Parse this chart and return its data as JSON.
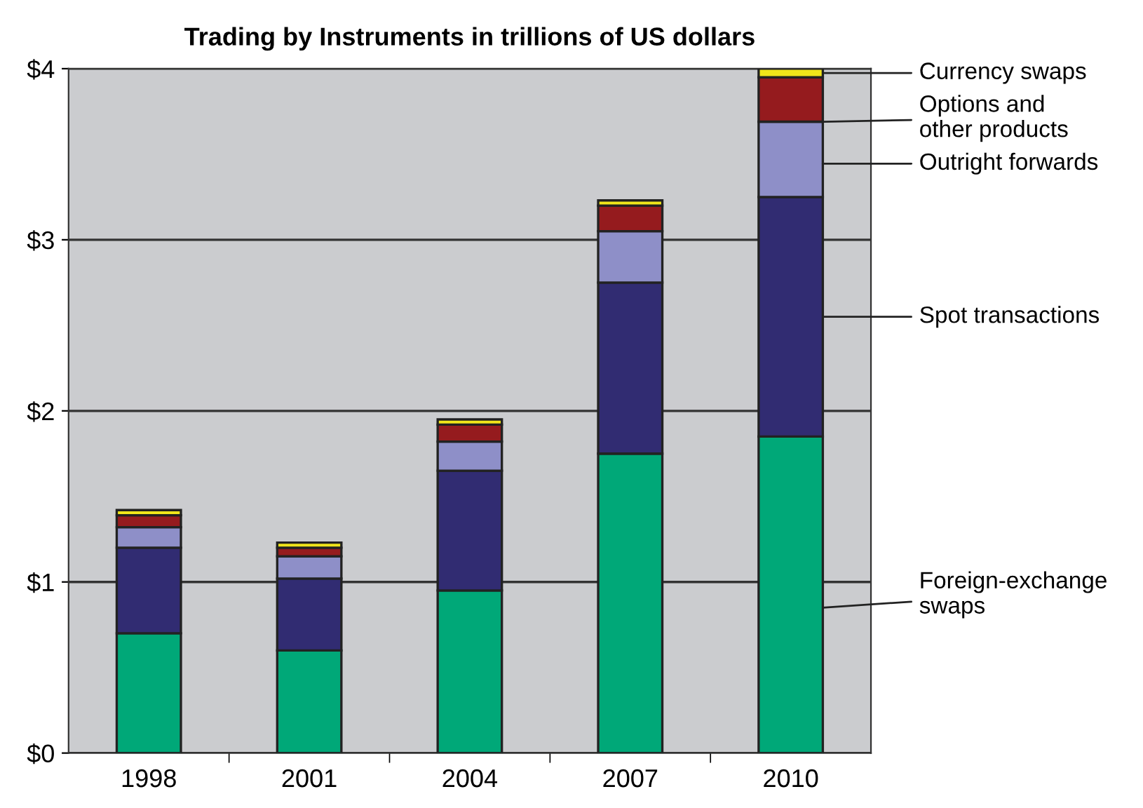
{
  "chart_data": {
    "type": "bar",
    "title": "Trading by Instruments in trillions of US dollars",
    "stacked": true,
    "categories": [
      "1998",
      "2001",
      "2004",
      "2007",
      "2010"
    ],
    "series": [
      {
        "name": "Foreign-exchange\nswaps",
        "color": "#00a878",
        "values": [
          0.7,
          0.6,
          0.95,
          1.75,
          1.85
        ]
      },
      {
        "name": "Spot transactions",
        "color": "#312c72",
        "values": [
          0.5,
          0.42,
          0.7,
          1.0,
          1.4
        ]
      },
      {
        "name": "Outright forwards",
        "color": "#8e8fc8",
        "values": [
          0.12,
          0.13,
          0.17,
          0.3,
          0.44
        ]
      },
      {
        "name": "Options and\nother products",
        "color": "#951b1e",
        "values": [
          0.07,
          0.05,
          0.1,
          0.15,
          0.26
        ]
      },
      {
        "name": "Currency swaps",
        "color": "#f0e51a",
        "values": [
          0.03,
          0.03,
          0.03,
          0.03,
          0.05
        ]
      }
    ],
    "ylim": [
      0,
      4
    ],
    "yticks": [
      {
        "value": 0,
        "label": "$0"
      },
      {
        "value": 1,
        "label": "$1"
      },
      {
        "value": 2,
        "label": "$2"
      },
      {
        "value": 3,
        "label": "$3"
      },
      {
        "value": 4,
        "label": "$4"
      }
    ],
    "grid": "y",
    "legend": "right"
  }
}
